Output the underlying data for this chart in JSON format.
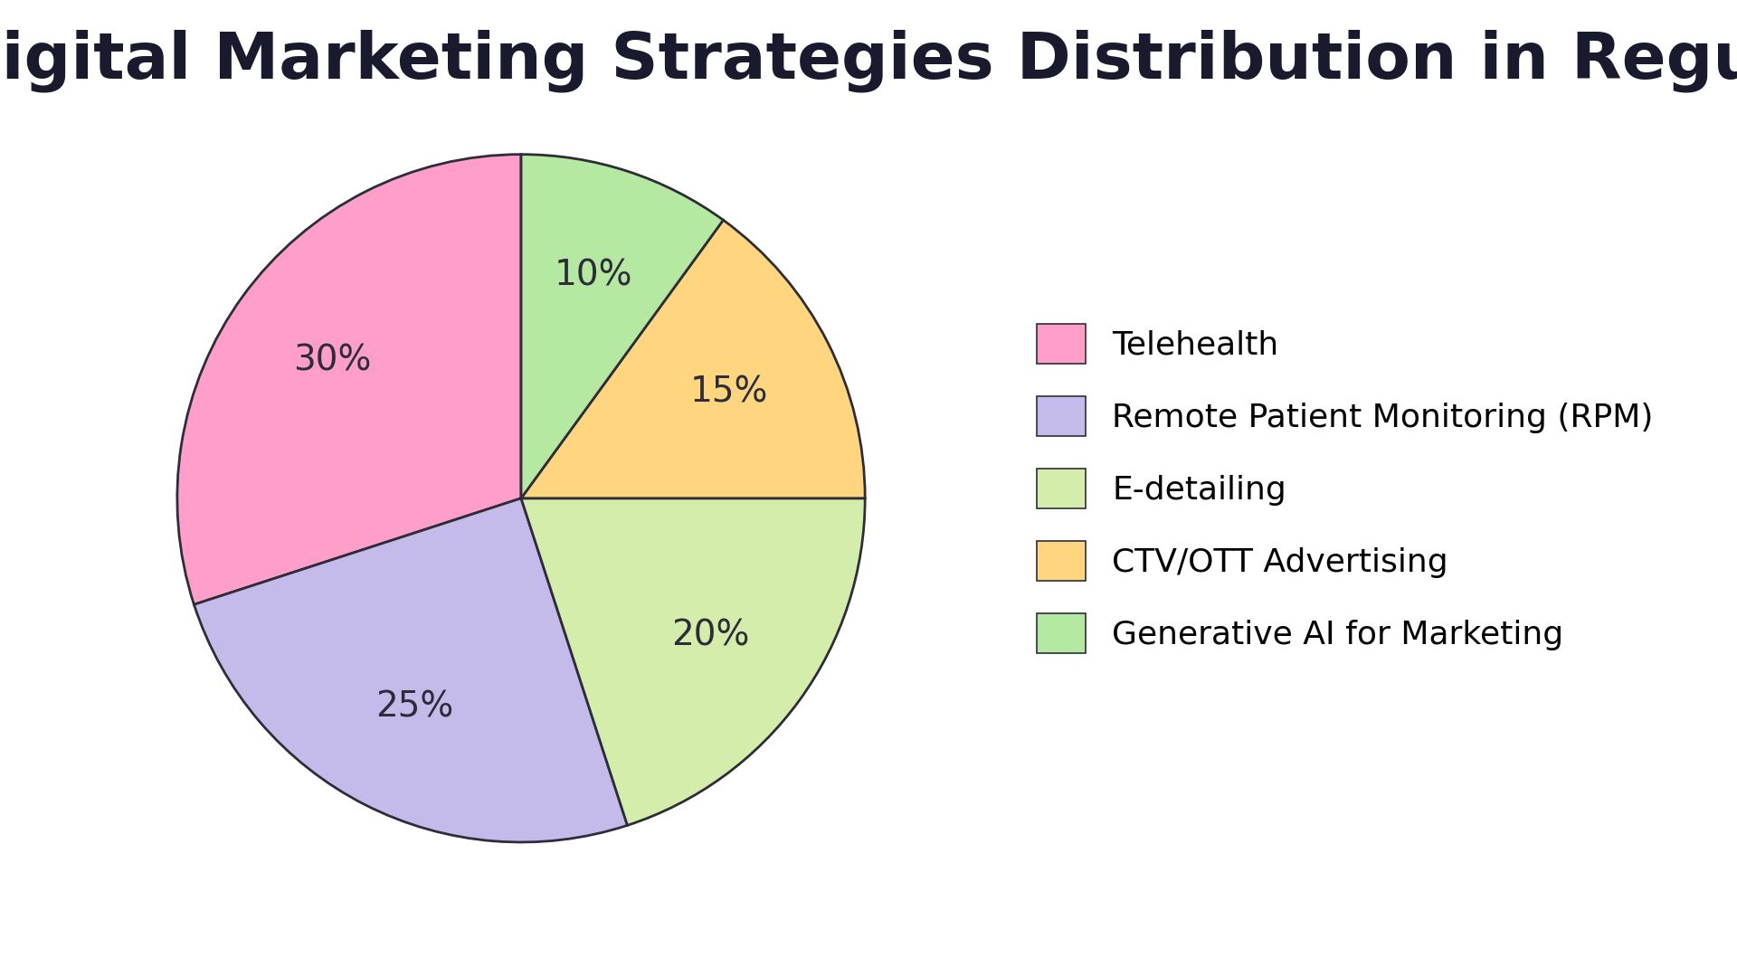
{
  "title": "\"Digital Marketing Strategies Distribution in Regulated Industries\"",
  "labels": [
    "Telehealth",
    "Remote Patient Monitoring (RPM)",
    "E-detailing",
    "CTV/OTT Advertising",
    "Generative AI for Marketing"
  ],
  "values": [
    30,
    25,
    20,
    15,
    10
  ],
  "colors": [
    "#FF9EC8",
    "#C5BBEA",
    "#D4EDAA",
    "#FFD580",
    "#B5E8A0"
  ],
  "edge_color": "#2d2d3a",
  "edge_width": 2.0,
  "background_color": "#ffffff",
  "title_fontsize": 52,
  "label_fontsize": 28,
  "legend_fontsize": 26,
  "startangle": 90
}
